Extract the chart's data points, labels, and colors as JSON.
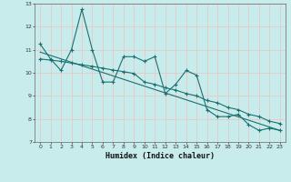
{
  "xlabel": "Humidex (Indice chaleur)",
  "background_color": "#c8ecec",
  "grid_color": "#aed8d8",
  "line_color": "#1a7070",
  "xlim": [
    -0.5,
    23.5
  ],
  "ylim": [
    7,
    13
  ],
  "yticks": [
    7,
    8,
    9,
    10,
    11,
    12,
    13
  ],
  "xticks": [
    0,
    1,
    2,
    3,
    4,
    5,
    6,
    7,
    8,
    9,
    10,
    11,
    12,
    13,
    14,
    15,
    16,
    17,
    18,
    19,
    20,
    21,
    22,
    23
  ],
  "series1_x": [
    0,
    1,
    2,
    3,
    4,
    5,
    6,
    7,
    8,
    9,
    10,
    11,
    12,
    13,
    14,
    15,
    16,
    17,
    18,
    19,
    20,
    21,
    22,
    23
  ],
  "series1_y": [
    11.25,
    10.6,
    10.1,
    11.0,
    12.75,
    11.0,
    9.6,
    9.6,
    10.7,
    10.7,
    10.5,
    10.7,
    9.1,
    9.5,
    10.1,
    9.9,
    8.4,
    8.1,
    8.1,
    8.2,
    7.75,
    7.5,
    7.6,
    7.5
  ],
  "series2_x": [
    0,
    1,
    2,
    3,
    4,
    5,
    6,
    7,
    8,
    9,
    10,
    11,
    12,
    13,
    14,
    15,
    16,
    17,
    18,
    19,
    20,
    21,
    22,
    23
  ],
  "series2_y": [
    10.6,
    10.55,
    10.5,
    10.42,
    10.35,
    10.28,
    10.2,
    10.12,
    10.05,
    9.97,
    9.6,
    9.5,
    9.35,
    9.25,
    9.1,
    9.0,
    8.8,
    8.7,
    8.5,
    8.4,
    8.2,
    8.1,
    7.9,
    7.8
  ],
  "series3_x": [
    0,
    23
  ],
  "series3_y": [
    10.9,
    7.5
  ]
}
